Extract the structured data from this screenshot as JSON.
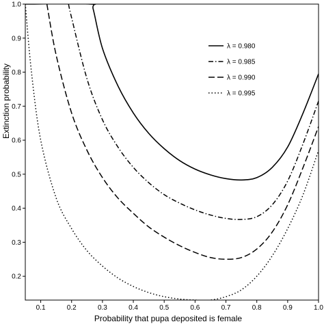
{
  "chart_data": {
    "type": "line",
    "xlabel": "Probability that pupa deposited is female",
    "ylabel": "Extinction probability",
    "xlim": [
      0.05,
      1.0
    ],
    "ylim": [
      0.13,
      1.0
    ],
    "x_ticks": [
      "0.1",
      "0.2",
      "0.3",
      "0.4",
      "0.5",
      "0.6",
      "0.7",
      "0.8",
      "0.9",
      "1.0"
    ],
    "y_ticks": [
      "0.2",
      "0.3",
      "0.4",
      "0.5",
      "0.6",
      "0.7",
      "0.8",
      "0.9",
      "1.0"
    ],
    "legend_position": "top-right",
    "legend_title_symbol": "λ",
    "series": [
      {
        "name": "λ = 0.980",
        "dash": "solid",
        "points": [
          [
            0.05,
            1.0
          ],
          [
            0.26,
            1.0
          ],
          [
            0.27,
            0.985
          ],
          [
            0.3,
            0.87
          ],
          [
            0.35,
            0.76
          ],
          [
            0.4,
            0.68
          ],
          [
            0.45,
            0.62
          ],
          [
            0.5,
            0.575
          ],
          [
            0.55,
            0.54
          ],
          [
            0.6,
            0.515
          ],
          [
            0.65,
            0.498
          ],
          [
            0.7,
            0.487
          ],
          [
            0.75,
            0.483
          ],
          [
            0.8,
            0.49
          ],
          [
            0.85,
            0.52
          ],
          [
            0.9,
            0.58
          ],
          [
            0.95,
            0.68
          ],
          [
            1.0,
            0.795
          ]
        ]
      },
      {
        "name": "λ = 0.985",
        "dash": "dashdot",
        "points": [
          [
            0.19,
            1.0
          ],
          [
            0.2,
            0.96
          ],
          [
            0.25,
            0.78
          ],
          [
            0.3,
            0.66
          ],
          [
            0.35,
            0.58
          ],
          [
            0.4,
            0.52
          ],
          [
            0.45,
            0.475
          ],
          [
            0.5,
            0.44
          ],
          [
            0.55,
            0.415
          ],
          [
            0.6,
            0.395
          ],
          [
            0.65,
            0.38
          ],
          [
            0.7,
            0.37
          ],
          [
            0.75,
            0.367
          ],
          [
            0.8,
            0.375
          ],
          [
            0.85,
            0.41
          ],
          [
            0.9,
            0.48
          ],
          [
            0.95,
            0.59
          ],
          [
            1.0,
            0.715
          ]
        ]
      },
      {
        "name": "λ = 0.990",
        "dash": "dashed",
        "points": [
          [
            0.12,
            1.0
          ],
          [
            0.15,
            0.85
          ],
          [
            0.2,
            0.68
          ],
          [
            0.25,
            0.57
          ],
          [
            0.3,
            0.49
          ],
          [
            0.35,
            0.43
          ],
          [
            0.4,
            0.385
          ],
          [
            0.45,
            0.345
          ],
          [
            0.5,
            0.315
          ],
          [
            0.55,
            0.29
          ],
          [
            0.6,
            0.27
          ],
          [
            0.65,
            0.255
          ],
          [
            0.7,
            0.25
          ],
          [
            0.75,
            0.255
          ],
          [
            0.8,
            0.28
          ],
          [
            0.85,
            0.33
          ],
          [
            0.9,
            0.41
          ],
          [
            0.95,
            0.52
          ],
          [
            1.0,
            0.64
          ]
        ]
      },
      {
        "name": "λ = 0.995",
        "dash": "dotted",
        "points": [
          [
            0.05,
            1.0
          ],
          [
            0.07,
            0.8
          ],
          [
            0.1,
            0.6
          ],
          [
            0.15,
            0.43
          ],
          [
            0.2,
            0.34
          ],
          [
            0.25,
            0.275
          ],
          [
            0.3,
            0.23
          ],
          [
            0.35,
            0.195
          ],
          [
            0.4,
            0.17
          ],
          [
            0.45,
            0.152
          ],
          [
            0.5,
            0.14
          ],
          [
            0.55,
            0.133
          ],
          [
            0.6,
            0.13
          ],
          [
            0.65,
            0.13
          ],
          [
            0.7,
            0.14
          ],
          [
            0.75,
            0.16
          ],
          [
            0.8,
            0.2
          ],
          [
            0.85,
            0.26
          ],
          [
            0.9,
            0.34
          ],
          [
            0.95,
            0.44
          ],
          [
            1.0,
            0.57
          ]
        ]
      }
    ]
  }
}
